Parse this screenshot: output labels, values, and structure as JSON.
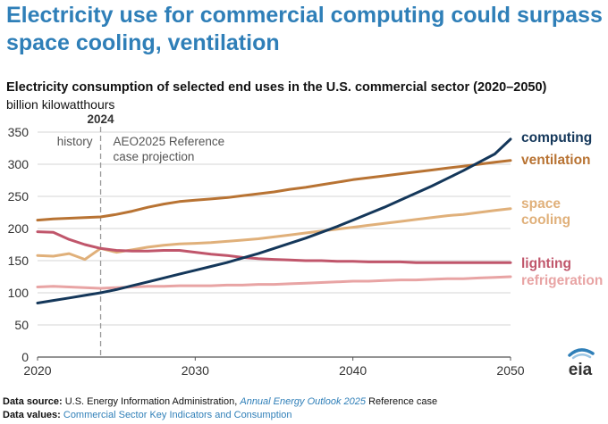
{
  "headline": "Electricity use for commercial computing could surpass space cooling, ventilation",
  "chart_data": {
    "type": "line",
    "title": "Electricity consumption of selected end uses in the U.S. commercial sector (2020–2050)",
    "ylabel": "billion kilowatthours",
    "xlim": [
      2020,
      2050
    ],
    "ylim": [
      0,
      350
    ],
    "x_ticks": [
      "2020",
      "2030",
      "2040",
      "2050"
    ],
    "y_ticks": [
      "0",
      "50",
      "100",
      "150",
      "200",
      "250",
      "300",
      "350"
    ],
    "grid": "horizontal",
    "divider": {
      "x": 2024,
      "label": "2024"
    },
    "history_label": "history",
    "projection_label": [
      "AEO2025 Reference",
      "case projection"
    ],
    "x": [
      2020,
      2021,
      2022,
      2023,
      2024,
      2025,
      2026,
      2027,
      2028,
      2029,
      2030,
      2031,
      2032,
      2033,
      2034,
      2035,
      2036,
      2037,
      2038,
      2039,
      2040,
      2041,
      2042,
      2043,
      2044,
      2045,
      2046,
      2047,
      2048,
      2049,
      2050
    ],
    "series": [
      {
        "name": "computing",
        "label_lines": [
          "computing"
        ],
        "color": "#14375a",
        "values": [
          84,
          88,
          92,
          96,
          100,
          105,
          111,
          117,
          123,
          129,
          135,
          141,
          147,
          154,
          161,
          169,
          177,
          185,
          194,
          203,
          213,
          223,
          233,
          244,
          255,
          266,
          278,
          290,
          303,
          316,
          339
        ]
      },
      {
        "name": "ventilation",
        "label_lines": [
          "ventilation"
        ],
        "color": "#b87333",
        "values": [
          213,
          215,
          216,
          217,
          218,
          222,
          227,
          233,
          238,
          242,
          244,
          246,
          248,
          251,
          254,
          257,
          261,
          264,
          268,
          272,
          276,
          279,
          282,
          285,
          288,
          291,
          294,
          297,
          300,
          303,
          306
        ]
      },
      {
        "name": "space cooling",
        "label_lines": [
          "space",
          "cooling"
        ],
        "color": "#e0b07a",
        "values": [
          158,
          157,
          161,
          152,
          169,
          163,
          167,
          171,
          174,
          176,
          177,
          178,
          180,
          182,
          184,
          187,
          190,
          193,
          196,
          199,
          202,
          205,
          208,
          211,
          214,
          217,
          220,
          222,
          225,
          228,
          231
        ]
      },
      {
        "name": "lighting",
        "label_lines": [
          "lighting"
        ],
        "color": "#c0566b",
        "values": [
          195,
          194,
          183,
          175,
          169,
          166,
          165,
          165,
          166,
          166,
          163,
          160,
          158,
          155,
          153,
          152,
          151,
          150,
          150,
          149,
          149,
          148,
          148,
          148,
          147,
          147,
          147,
          147,
          147,
          147,
          147
        ]
      },
      {
        "name": "refrigeration",
        "label_lines": [
          "refrigeration"
        ],
        "color": "#e8a4a4",
        "values": [
          109,
          110,
          109,
          108,
          107,
          108,
          109,
          110,
          110,
          111,
          111,
          111,
          112,
          112,
          113,
          113,
          114,
          115,
          116,
          117,
          118,
          118,
          119,
          120,
          120,
          121,
          122,
          122,
          123,
          124,
          125
        ]
      }
    ]
  },
  "source": {
    "label": "Data source:",
    "text_before": "U.S. Energy Information Administration,",
    "link": "Annual Energy Outlook 2025",
    "text_after": "Reference case"
  },
  "values": {
    "label": "Data values:",
    "link": "Commercial Sector Key Indicators and Consumption"
  },
  "logo": {
    "text": "eia"
  }
}
